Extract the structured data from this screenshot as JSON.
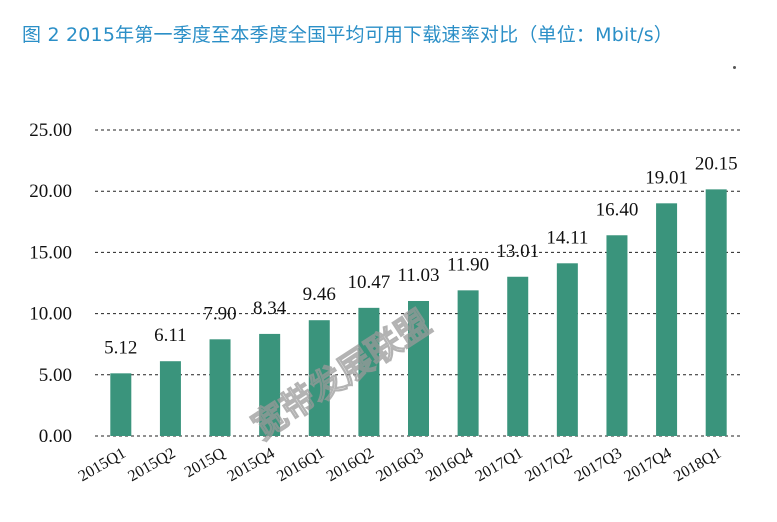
{
  "title": "图 2  2015年第一季度至本季度全国平均可用下载速率对比（单位：Mbit/s）",
  "watermark": "宽带发展联盟",
  "colors": {
    "title": "#2b8fc7",
    "bar": "#3a947c",
    "grid": "#222222"
  },
  "chart_data": {
    "type": "bar",
    "categories": [
      "2015Q1",
      "2015Q2",
      "2015Q",
      "2015Q4",
      "2016Q1",
      "2016Q2",
      "2016Q3",
      "2016Q4",
      "2017Q1",
      "2017Q2",
      "2017Q3",
      "2017Q4",
      "2018Q1"
    ],
    "values": [
      5.12,
      6.11,
      7.9,
      8.34,
      9.46,
      10.47,
      11.03,
      11.9,
      13.01,
      14.11,
      16.4,
      19.01,
      20.15
    ],
    "value_labels": [
      "5.12",
      "6.11",
      "7.90",
      "8.34",
      "9.46",
      "10.47",
      "11.03",
      "11.90",
      "13.01",
      "14.11",
      "16.40",
      "19.01",
      "20.15"
    ],
    "yticks": [
      "0.00",
      "5.00",
      "10.00",
      "15.00",
      "20.00",
      "25.00"
    ],
    "ylim": [
      0,
      25
    ],
    "grid": "dashed horizontal",
    "legend": "none"
  }
}
